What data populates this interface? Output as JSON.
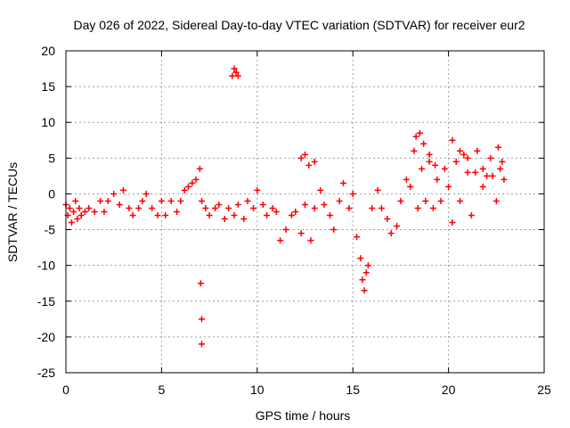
{
  "chart_data": {
    "type": "scatter",
    "title": "Day 026 of 2022, Sidereal Day-to-day VTEC variation (SDTVAR) for receiver eur2",
    "xlabel": "GPS time / hours",
    "ylabel": "SDTVAR / TECUs",
    "xlim": [
      0,
      25
    ],
    "ylim": [
      -25,
      20
    ],
    "x_ticks": [
      0,
      5,
      10,
      15,
      20,
      25
    ],
    "y_ticks": [
      -25,
      -20,
      -15,
      -10,
      -5,
      0,
      5,
      10,
      15,
      20
    ],
    "grid": true,
    "marker": "+",
    "series": [
      {
        "name": "SDTVAR",
        "color": "#ff0000",
        "x": [
          0.0,
          0.1,
          0.2,
          0.3,
          0.4,
          0.5,
          0.6,
          0.7,
          0.8,
          1.0,
          1.2,
          1.5,
          1.8,
          2.0,
          2.2,
          2.5,
          2.8,
          3.0,
          3.3,
          3.5,
          3.8,
          4.0,
          4.2,
          4.5,
          4.8,
          5.0,
          5.2,
          5.5,
          5.8,
          6.0,
          6.2,
          6.4,
          6.6,
          6.8,
          7.0,
          7.05,
          7.1,
          7.1,
          7.1,
          7.3,
          7.5,
          7.8,
          8.0,
          8.3,
          8.5,
          8.8,
          9.0,
          9.3,
          9.5,
          9.8,
          10.0,
          10.3,
          10.5,
          10.8,
          11.0,
          11.2,
          11.5,
          11.8,
          12.0,
          12.3,
          12.5,
          12.8,
          13.0,
          13.3,
          13.5,
          13.8,
          14.0,
          14.3,
          14.5,
          14.8,
          15.0,
          15.2,
          15.4,
          15.5,
          15.6,
          15.7,
          15.8,
          16.0,
          16.3,
          16.5,
          16.8,
          17.0,
          17.3,
          17.5,
          17.8,
          18.0,
          18.2,
          18.4,
          18.6,
          18.8,
          19.0,
          19.2,
          19.4,
          19.6,
          19.8,
          20.0,
          20.2,
          20.4,
          20.6,
          20.8,
          21.0,
          21.2,
          21.5,
          21.8,
          22.0,
          22.2,
          22.5,
          22.7,
          22.9,
          8.7,
          8.8,
          8.9,
          9.0,
          12.3,
          12.5,
          12.7,
          13.0,
          20.2,
          20.6,
          21.0,
          21.4,
          21.8,
          22.3,
          22.6,
          22.8,
          18.3,
          18.5,
          18.7,
          19.0,
          19.3
        ],
        "values": [
          -1.5,
          -3.0,
          -2.0,
          -4.0,
          -2.5,
          -1.0,
          -3.5,
          -2.0,
          -3.0,
          -2.5,
          -2.0,
          -2.5,
          -1.0,
          -2.5,
          -1.0,
          0.0,
          -1.5,
          0.5,
          -2.0,
          -3.0,
          -2.0,
          -1.0,
          0.0,
          -2.0,
          -3.0,
          -1.0,
          -3.0,
          -1.0,
          -2.5,
          -1.0,
          0.5,
          1.0,
          1.5,
          2.0,
          3.5,
          -12.5,
          -17.5,
          -21.0,
          -1.0,
          -2.0,
          -3.0,
          -2.0,
          -1.5,
          -3.5,
          -2.0,
          -3.0,
          -1.5,
          -3.5,
          -1.0,
          -2.0,
          0.5,
          -1.5,
          -3.0,
          -2.0,
          -2.5,
          -6.5,
          -5.0,
          -3.0,
          -2.5,
          -5.5,
          -1.5,
          -6.5,
          -2.0,
          0.5,
          -1.5,
          -3.0,
          -5.0,
          -1.0,
          1.5,
          -2.0,
          0.0,
          -6.0,
          -9.0,
          -12.0,
          -13.5,
          -11.0,
          -10.0,
          -2.0,
          0.5,
          -2.0,
          -3.5,
          -5.5,
          -4.5,
          -1.0,
          2.0,
          1.0,
          6.0,
          -2.0,
          3.5,
          -1.0,
          4.5,
          -2.0,
          2.0,
          -1.0,
          3.5,
          1.0,
          -4.0,
          4.5,
          -1.0,
          5.5,
          3.0,
          -3.0,
          6.0,
          3.5,
          2.5,
          5.0,
          -1.0,
          3.5,
          2.0,
          16.5,
          17.5,
          17.0,
          16.5,
          5.0,
          5.5,
          4.0,
          4.5,
          7.5,
          6.0,
          5.0,
          3.0,
          1.0,
          2.5,
          6.5,
          4.5,
          8.0,
          8.5,
          7.0,
          5.5,
          4.0
        ]
      }
    ]
  }
}
